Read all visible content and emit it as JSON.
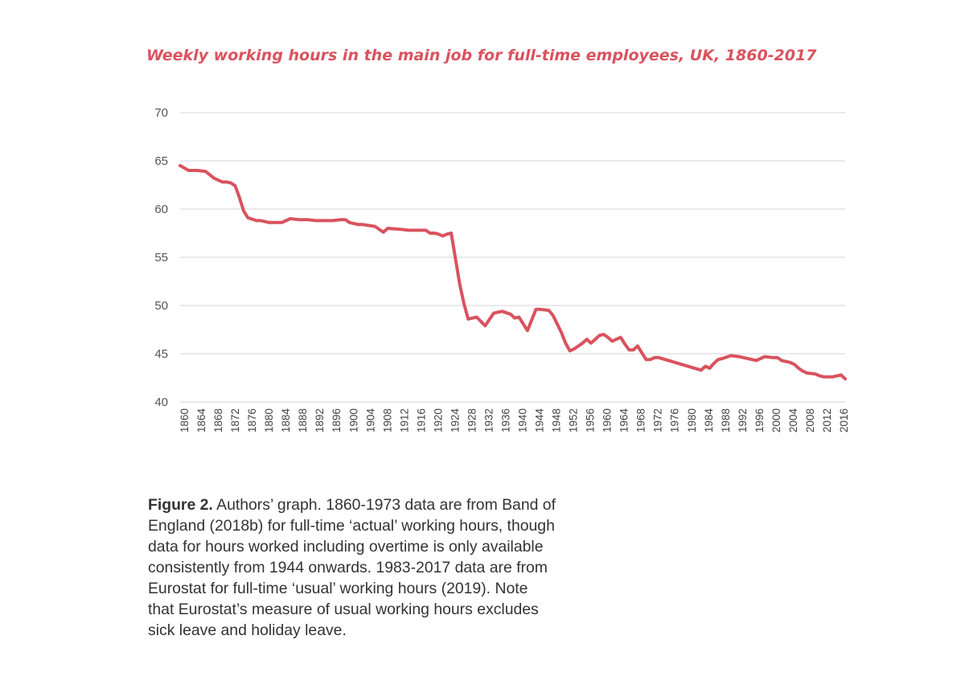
{
  "chart_data": {
    "type": "line",
    "title": "Weekly working hours in the main job for full-time employees, UK, 1860-2017",
    "xlabel": "",
    "ylabel": "",
    "ylim": [
      40,
      70
    ],
    "yticks": [
      40,
      45,
      50,
      55,
      60,
      65,
      70
    ],
    "grid": true,
    "legend": "none",
    "color": "#d9535f",
    "x_tick_labels": [
      "1860",
      "1864",
      "1868",
      "1872",
      "1876",
      "1880",
      "1884",
      "1888",
      "1892",
      "1896",
      "1900",
      "1904",
      "1908",
      "1912",
      "1916",
      "1920",
      "1924",
      "1928",
      "1932",
      "1936",
      "1940",
      "1944",
      "1948",
      "1952",
      "1956",
      "1960",
      "1964",
      "1968",
      "1972",
      "1976",
      "1980",
      "1984",
      "1988",
      "1992",
      "1996",
      "2000",
      "2004",
      "2008",
      "2012",
      "2016"
    ],
    "x": [
      "1860",
      "1862",
      "1864",
      "1866",
      "1868",
      "1870",
      "1871",
      "1872",
      "1873",
      "1874",
      "1875",
      "1876",
      "1878",
      "1879",
      "1880",
      "1881",
      "1884",
      "1886",
      "1888",
      "1890",
      "1892",
      "1894",
      "1896",
      "1898",
      "1899",
      "1900",
      "1902",
      "1903",
      "1906",
      "1908",
      "1909",
      "1912",
      "1914",
      "1916",
      "1918",
      "1919",
      "1920",
      "1921",
      "1922",
      "1923",
      "1924",
      "1926",
      "1927",
      "1928",
      "1930",
      "1932",
      "1934",
      "1936",
      "1938",
      "1939",
      "1940",
      "1942",
      "1944",
      "1945",
      "1947",
      "1948",
      "1950",
      "1951",
      "1952",
      "1953",
      "1955",
      "1956",
      "1957",
      "1958",
      "1959",
      "1960",
      "1961",
      "1962",
      "1964",
      "1965",
      "1966",
      "1967",
      "1968",
      "1970",
      "1971",
      "1972",
      "1973",
      "1983",
      "1984",
      "1985",
      "1986",
      "1987",
      "1988",
      "1990",
      "1992",
      "1993",
      "1996",
      "1997",
      "1998",
      "2000",
      "2001",
      "2002",
      "2004",
      "2005",
      "2006",
      "2007",
      "2008",
      "2010",
      "2011",
      "2012",
      "2014",
      "2016",
      "2017"
    ],
    "y": [
      64.5,
      64.0,
      64.0,
      63.9,
      63.2,
      62.8,
      62.8,
      62.7,
      62.4,
      61.2,
      59.8,
      59.1,
      58.8,
      58.8,
      58.7,
      58.6,
      58.6,
      59.0,
      58.9,
      58.9,
      58.8,
      58.8,
      58.8,
      58.9,
      58.9,
      58.6,
      58.4,
      58.4,
      58.2,
      57.6,
      58.0,
      57.9,
      57.8,
      57.8,
      57.8,
      57.5,
      57.5,
      57.4,
      57.2,
      57.4,
      57.5,
      52.2,
      50.2,
      48.6,
      48.8,
      47.9,
      49.2,
      49.4,
      49.1,
      48.7,
      48.8,
      47.4,
      49.6,
      49.6,
      49.5,
      49.0,
      47.2,
      46.1,
      45.3,
      45.5,
      46.1,
      46.5,
      46.1,
      46.5,
      46.9,
      47.0,
      46.7,
      46.3,
      46.7,
      46.0,
      45.4,
      45.4,
      45.8,
      44.4,
      44.4,
      44.6,
      44.6,
      43.3,
      43.7,
      43.5,
      44.0,
      44.4,
      44.5,
      44.8,
      44.7,
      44.6,
      44.3,
      44.5,
      44.7,
      44.6,
      44.6,
      44.3,
      44.1,
      43.9,
      43.5,
      43.2,
      43.0,
      42.9,
      42.7,
      42.6,
      42.6,
      42.8,
      42.4
    ]
  },
  "caption": {
    "label": "Figure 2.",
    "lines": [
      " Authors’ graph. 1860-1973 data are from Band of",
      "England (2018b) for full-time ‘actual’ working hours, though",
      "data for hours worked including overtime is only available",
      "consistently from 1944 onwards. 1983-2017 data are from",
      "Eurostat for full-time ‘usual’ working hours (2019). Note",
      "that Eurostat’s measure of usual working hours excludes",
      "sick leave and holiday leave."
    ]
  }
}
